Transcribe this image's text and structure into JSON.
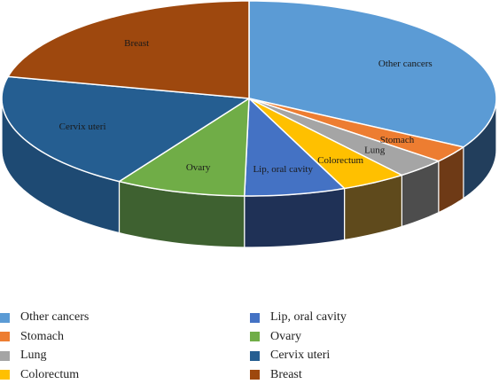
{
  "chart_data": {
    "type": "pie",
    "style": "3d",
    "title": "",
    "start_angle_deg": 0,
    "direction": "clockwise",
    "slices": [
      {
        "label": "Other cancers",
        "value": 33.3,
        "color": "#5B9BD5",
        "side_color": "#223E5C"
      },
      {
        "label": "Stomach",
        "value": 2.8,
        "color": "#ED7D31",
        "side_color": "#6E3A16"
      },
      {
        "label": "Lung",
        "value": 3.3,
        "color": "#A5A5A5",
        "side_color": "#4D4D4D"
      },
      {
        "label": "Colorectum",
        "value": 4.3,
        "color": "#FFC000",
        "side_color": "#5F4A1C"
      },
      {
        "label": "Lip, oral cavity",
        "value": 6.6,
        "color": "#4472C4",
        "side_color": "#1F3156"
      },
      {
        "label": "Ovary",
        "value": 8.5,
        "color": "#70AD47",
        "side_color": "#3E6130"
      },
      {
        "label": "Cervix uteri",
        "value": 19.8,
        "color": "#255E91",
        "side_color": "#1E4A73"
      },
      {
        "label": "Breast",
        "value": 21.4,
        "color": "#9E480E",
        "side_color": "#6B300A"
      }
    ],
    "legend": {
      "placement": "bottom",
      "columns": [
        [
          "Other cancers",
          "Stomach",
          "Lung",
          "Colorectum"
        ],
        [
          "Lip, oral cavity",
          "Ovary",
          "Cervix uteri",
          "Breast"
        ]
      ]
    }
  }
}
